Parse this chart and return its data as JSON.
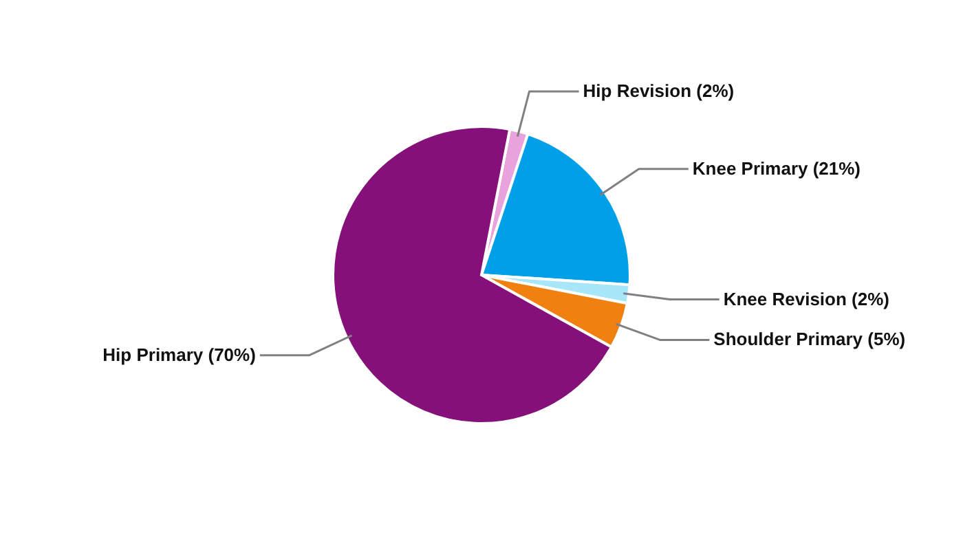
{
  "chart_data": {
    "type": "pie",
    "categories": [
      "Hip Revision",
      "Knee Primary",
      "Knee Revision",
      "Shoulder Primary",
      "Hip Primary"
    ],
    "values": [
      2,
      21,
      2,
      5,
      70
    ],
    "value_labels": [
      "(2%)",
      "(21%)",
      "(2%)",
      "(5%)",
      "(70%)"
    ],
    "colors": [
      "#e8a2dc",
      "#00a0e9",
      "#a8e6fa",
      "#f08010",
      "#85107a"
    ],
    "legend": false
  }
}
